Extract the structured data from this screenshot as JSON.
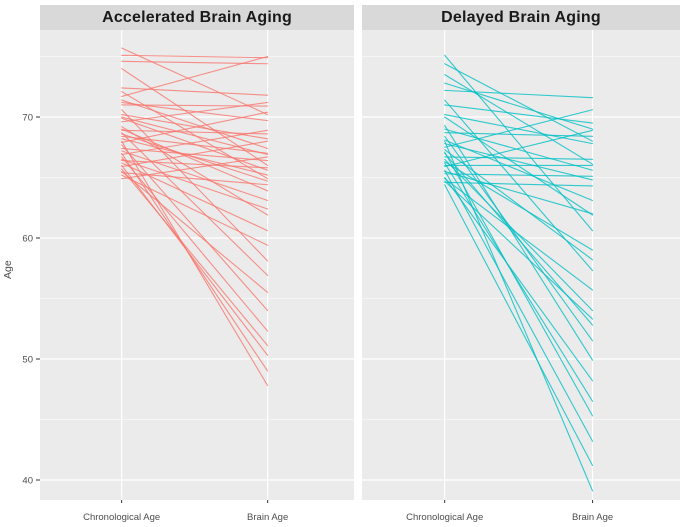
{
  "chart_data": {
    "type": "line",
    "subtype": "faceted-slope-chart",
    "title": "",
    "categories": [
      "Chronological Age",
      "Brain Age"
    ],
    "ylabel": "Age",
    "xlabel": "",
    "y_ticks": [
      40,
      50,
      60,
      70
    ],
    "y_minor_ticks": [
      45,
      55,
      65,
      75
    ],
    "ylim": [
      37.5,
      77.2
    ],
    "grid": true,
    "legend": "none",
    "facets": [
      {
        "label": "Accelerated Brain Aging",
        "color": "#F8766D",
        "lines": [
          [
            75.7,
            70.2
          ],
          [
            75.1,
            74.9
          ],
          [
            74.6,
            74.4
          ],
          [
            74.0,
            66.0
          ],
          [
            72.4,
            71.8
          ],
          [
            72.1,
            64.9
          ],
          [
            71.7,
            75.0
          ],
          [
            71.4,
            67.4
          ],
          [
            71.0,
            70.9
          ],
          [
            70.6,
            58.1
          ],
          [
            70.2,
            68.2
          ],
          [
            69.9,
            65.6
          ],
          [
            69.6,
            71.2
          ],
          [
            69.2,
            61.9
          ],
          [
            68.9,
            68.6
          ],
          [
            68.7,
            56.9
          ],
          [
            68.4,
            67.0
          ],
          [
            68.2,
            65.2
          ],
          [
            67.9,
            70.4
          ],
          [
            67.7,
            54.0
          ],
          [
            67.4,
            66.4
          ],
          [
            67.2,
            63.1
          ],
          [
            66.9,
            68.9
          ],
          [
            66.7,
            52.3
          ],
          [
            66.4,
            65.8
          ],
          [
            66.2,
            60.6
          ],
          [
            65.9,
            68.0
          ],
          [
            65.7,
            51.1
          ],
          [
            65.4,
            64.4
          ],
          [
            65.2,
            59.4
          ],
          [
            64.9,
            66.7
          ],
          [
            66.0,
            50.3
          ],
          [
            67.0,
            49.0
          ],
          [
            68.0,
            47.8
          ],
          [
            69.0,
            63.9
          ],
          [
            70.0,
            66.9
          ],
          [
            71.2,
            69.7
          ],
          [
            66.5,
            62.4
          ],
          [
            65.5,
            55.5
          ],
          [
            68.6,
            64.7
          ]
        ]
      },
      {
        "label": "Delayed Brain Aging",
        "color": "#00BFC4",
        "lines": [
          [
            75.1,
            60.6
          ],
          [
            74.4,
            68.0
          ],
          [
            73.5,
            66.1
          ],
          [
            72.2,
            71.6
          ],
          [
            71.4,
            57.3
          ],
          [
            70.2,
            67.8
          ],
          [
            69.3,
            49.9
          ],
          [
            68.7,
            68.4
          ],
          [
            68.1,
            63.1
          ],
          [
            67.5,
            70.6
          ],
          [
            67.1,
            45.3
          ],
          [
            66.7,
            66.5
          ],
          [
            66.3,
            59.0
          ],
          [
            65.9,
            68.9
          ],
          [
            65.6,
            43.2
          ],
          [
            65.3,
            65.1
          ],
          [
            64.9,
            55.7
          ],
          [
            64.6,
            64.3
          ],
          [
            64.4,
            41.2
          ],
          [
            66.0,
            66.0
          ],
          [
            67.0,
            52.8
          ],
          [
            68.0,
            39.1
          ],
          [
            69.0,
            65.6
          ],
          [
            70.0,
            61.9
          ],
          [
            71.0,
            69.5
          ],
          [
            65.0,
            48.2
          ],
          [
            66.5,
            54.0
          ],
          [
            67.8,
            64.8
          ],
          [
            68.4,
            51.5
          ],
          [
            65.5,
            62.0
          ],
          [
            72.8,
            69.0
          ],
          [
            66.2,
            46.5
          ],
          [
            67.3,
            58.2
          ],
          [
            64.7,
            53.3
          ]
        ]
      }
    ],
    "colors": {
      "panel_bg": "#EBEBEB",
      "strip_bg": "#D9D9D9",
      "gridline": "#FFFFFF",
      "axis_text": "#4D4D4D",
      "strip_text": "#1A1A1A",
      "tick_mark": "#333333"
    }
  }
}
